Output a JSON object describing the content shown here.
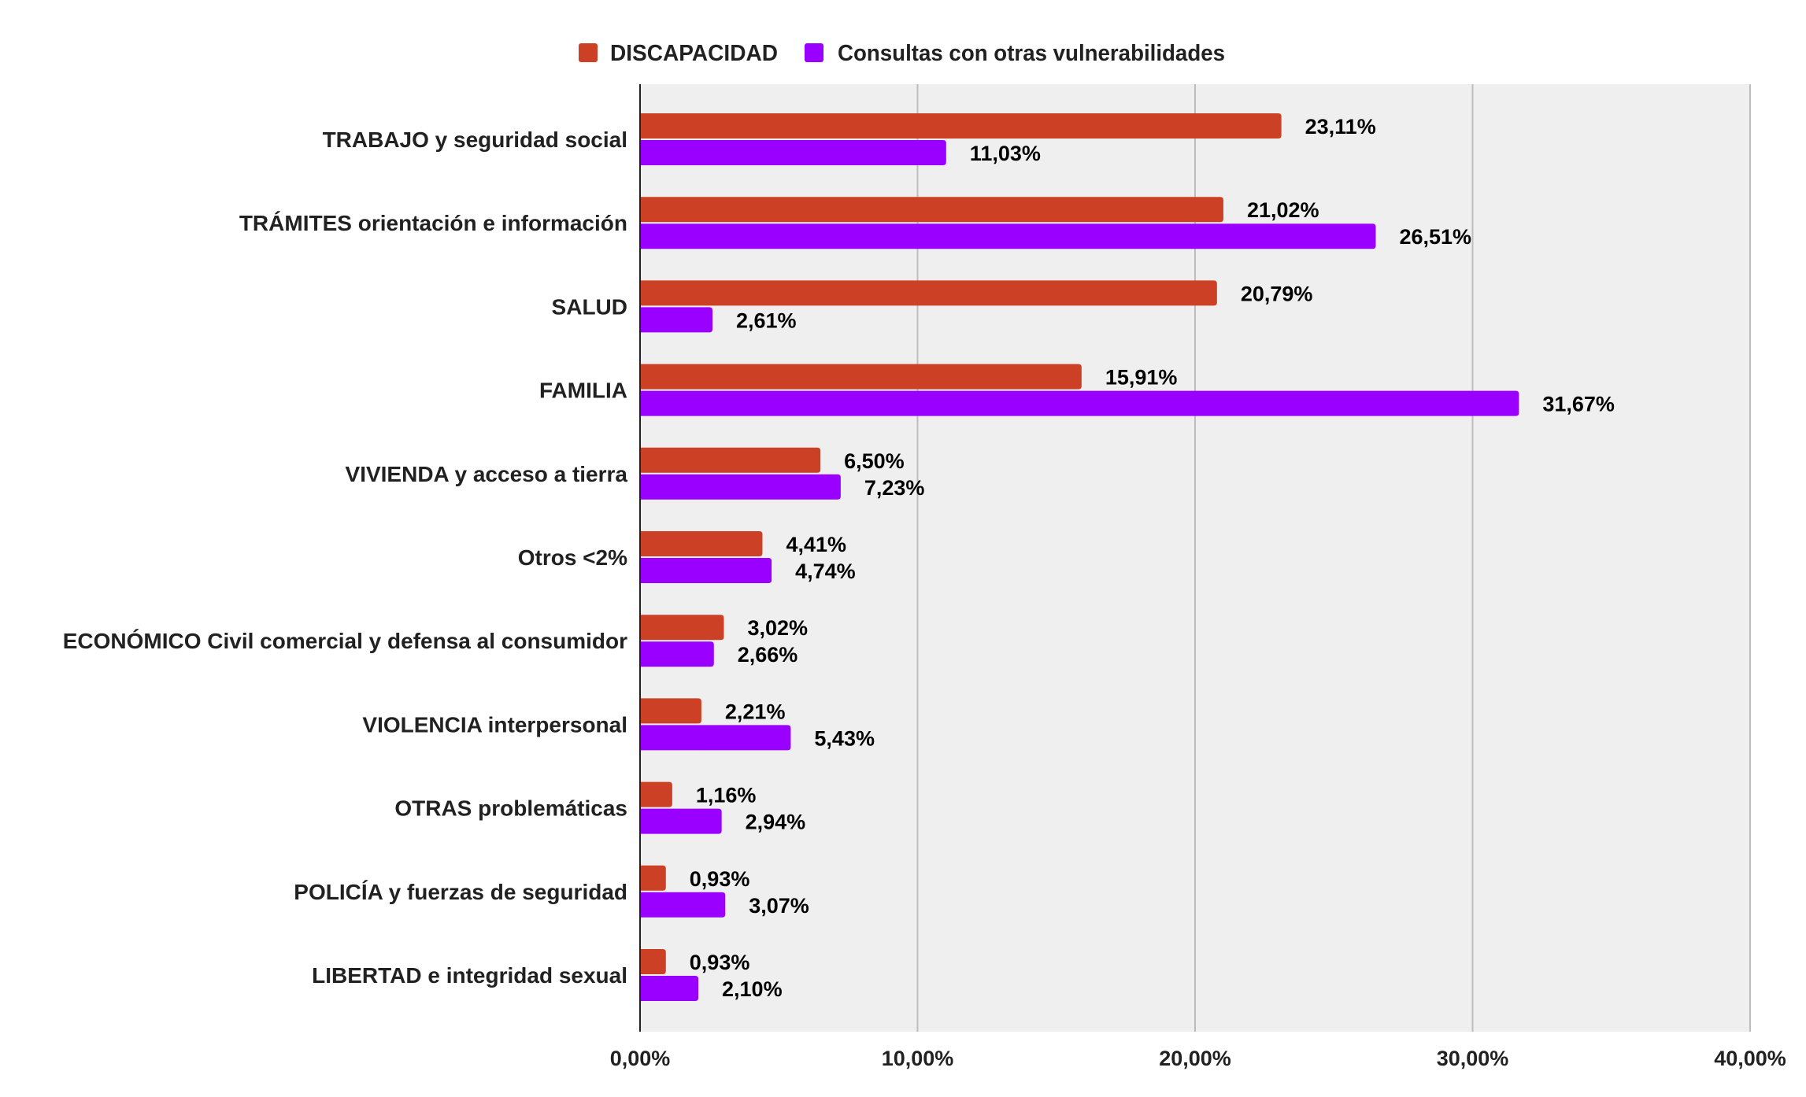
{
  "chart_data": {
    "type": "bar",
    "orientation": "horizontal",
    "title": "",
    "xlabel": "",
    "ylabel": "",
    "xlim": [
      0,
      40
    ],
    "x_ticks": [
      0,
      10,
      20,
      30,
      40
    ],
    "x_tick_labels": [
      "0,00%",
      "10,00%",
      "20,00%",
      "30,00%",
      "40,00%"
    ],
    "grid": true,
    "legend_position": "top-center",
    "categories": [
      "TRABAJO y seguridad social",
      "TRÁMITES orientación e información",
      "SALUD",
      "FAMILIA",
      "VIVIENDA y acceso a tierra",
      "Otros <2%",
      "ECONÓMICO Civil comercial y defensa al consumidor",
      "VIOLENCIA interpersonal",
      "OTRAS problemáticas",
      "POLICÍA y fuerzas de seguridad",
      "LIBERTAD e integridad sexual"
    ],
    "series": [
      {
        "name": "DISCAPACIDAD",
        "color": "#cc4125",
        "values": [
          23.11,
          21.02,
          20.79,
          15.91,
          6.5,
          4.41,
          3.02,
          2.21,
          1.16,
          0.93,
          0.93
        ],
        "labels": [
          "23,11%",
          "21,02%",
          "20,79%",
          "15,91%",
          "6,50%",
          "4,41%",
          "3,02%",
          "2,21%",
          "1,16%",
          "0,93%",
          "0,93%"
        ]
      },
      {
        "name": "Consultas con otras vulnerabilidades",
        "color": "#9900ff",
        "values": [
          11.03,
          26.51,
          2.61,
          31.67,
          7.23,
          4.74,
          2.66,
          5.43,
          2.94,
          3.07,
          2.1
        ],
        "labels": [
          "11,03%",
          "26,51%",
          "2,61%",
          "31,67%",
          "7,23%",
          "4,74%",
          "2,66%",
          "5,43%",
          "2,94%",
          "3,07%",
          "2,10%"
        ]
      }
    ],
    "colors": {
      "plot_background": "#efefef",
      "gridline": "#bdbdbd",
      "axis": "#212121",
      "text": "#212121"
    }
  }
}
